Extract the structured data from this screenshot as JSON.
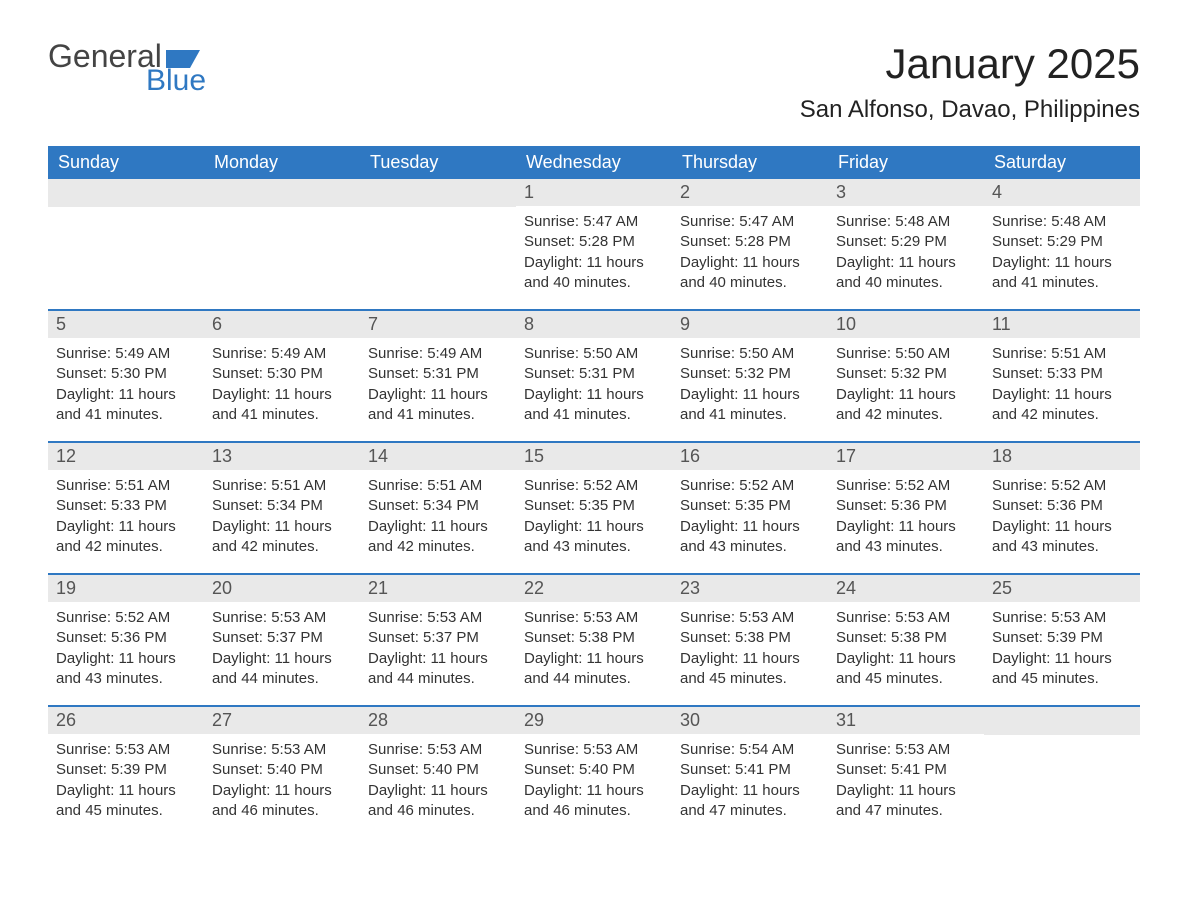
{
  "logo": {
    "general": "General",
    "blue": "Blue"
  },
  "header": {
    "month_title": "January 2025",
    "location": "San Alfonso, Davao, Philippines"
  },
  "colors": {
    "header_bg": "#2f78c2",
    "header_text": "#ffffff",
    "daynum_bg": "#e9e9e9",
    "week_divider": "#2f78c2",
    "body_text": "#333333"
  },
  "day_headers": [
    "Sunday",
    "Monday",
    "Tuesday",
    "Wednesday",
    "Thursday",
    "Friday",
    "Saturday"
  ],
  "weeks": [
    [
      {
        "day": "",
        "sunrise": "",
        "sunset": "",
        "daylight": ""
      },
      {
        "day": "",
        "sunrise": "",
        "sunset": "",
        "daylight": ""
      },
      {
        "day": "",
        "sunrise": "",
        "sunset": "",
        "daylight": ""
      },
      {
        "day": "1",
        "sunrise": "Sunrise: 5:47 AM",
        "sunset": "Sunset: 5:28 PM",
        "daylight": "Daylight: 11 hours and 40 minutes."
      },
      {
        "day": "2",
        "sunrise": "Sunrise: 5:47 AM",
        "sunset": "Sunset: 5:28 PM",
        "daylight": "Daylight: 11 hours and 40 minutes."
      },
      {
        "day": "3",
        "sunrise": "Sunrise: 5:48 AM",
        "sunset": "Sunset: 5:29 PM",
        "daylight": "Daylight: 11 hours and 40 minutes."
      },
      {
        "day": "4",
        "sunrise": "Sunrise: 5:48 AM",
        "sunset": "Sunset: 5:29 PM",
        "daylight": "Daylight: 11 hours and 41 minutes."
      }
    ],
    [
      {
        "day": "5",
        "sunrise": "Sunrise: 5:49 AM",
        "sunset": "Sunset: 5:30 PM",
        "daylight": "Daylight: 11 hours and 41 minutes."
      },
      {
        "day": "6",
        "sunrise": "Sunrise: 5:49 AM",
        "sunset": "Sunset: 5:30 PM",
        "daylight": "Daylight: 11 hours and 41 minutes."
      },
      {
        "day": "7",
        "sunrise": "Sunrise: 5:49 AM",
        "sunset": "Sunset: 5:31 PM",
        "daylight": "Daylight: 11 hours and 41 minutes."
      },
      {
        "day": "8",
        "sunrise": "Sunrise: 5:50 AM",
        "sunset": "Sunset: 5:31 PM",
        "daylight": "Daylight: 11 hours and 41 minutes."
      },
      {
        "day": "9",
        "sunrise": "Sunrise: 5:50 AM",
        "sunset": "Sunset: 5:32 PM",
        "daylight": "Daylight: 11 hours and 41 minutes."
      },
      {
        "day": "10",
        "sunrise": "Sunrise: 5:50 AM",
        "sunset": "Sunset: 5:32 PM",
        "daylight": "Daylight: 11 hours and 42 minutes."
      },
      {
        "day": "11",
        "sunrise": "Sunrise: 5:51 AM",
        "sunset": "Sunset: 5:33 PM",
        "daylight": "Daylight: 11 hours and 42 minutes."
      }
    ],
    [
      {
        "day": "12",
        "sunrise": "Sunrise: 5:51 AM",
        "sunset": "Sunset: 5:33 PM",
        "daylight": "Daylight: 11 hours and 42 minutes."
      },
      {
        "day": "13",
        "sunrise": "Sunrise: 5:51 AM",
        "sunset": "Sunset: 5:34 PM",
        "daylight": "Daylight: 11 hours and 42 minutes."
      },
      {
        "day": "14",
        "sunrise": "Sunrise: 5:51 AM",
        "sunset": "Sunset: 5:34 PM",
        "daylight": "Daylight: 11 hours and 42 minutes."
      },
      {
        "day": "15",
        "sunrise": "Sunrise: 5:52 AM",
        "sunset": "Sunset: 5:35 PM",
        "daylight": "Daylight: 11 hours and 43 minutes."
      },
      {
        "day": "16",
        "sunrise": "Sunrise: 5:52 AM",
        "sunset": "Sunset: 5:35 PM",
        "daylight": "Daylight: 11 hours and 43 minutes."
      },
      {
        "day": "17",
        "sunrise": "Sunrise: 5:52 AM",
        "sunset": "Sunset: 5:36 PM",
        "daylight": "Daylight: 11 hours and 43 minutes."
      },
      {
        "day": "18",
        "sunrise": "Sunrise: 5:52 AM",
        "sunset": "Sunset: 5:36 PM",
        "daylight": "Daylight: 11 hours and 43 minutes."
      }
    ],
    [
      {
        "day": "19",
        "sunrise": "Sunrise: 5:52 AM",
        "sunset": "Sunset: 5:36 PM",
        "daylight": "Daylight: 11 hours and 43 minutes."
      },
      {
        "day": "20",
        "sunrise": "Sunrise: 5:53 AM",
        "sunset": "Sunset: 5:37 PM",
        "daylight": "Daylight: 11 hours and 44 minutes."
      },
      {
        "day": "21",
        "sunrise": "Sunrise: 5:53 AM",
        "sunset": "Sunset: 5:37 PM",
        "daylight": "Daylight: 11 hours and 44 minutes."
      },
      {
        "day": "22",
        "sunrise": "Sunrise: 5:53 AM",
        "sunset": "Sunset: 5:38 PM",
        "daylight": "Daylight: 11 hours and 44 minutes."
      },
      {
        "day": "23",
        "sunrise": "Sunrise: 5:53 AM",
        "sunset": "Sunset: 5:38 PM",
        "daylight": "Daylight: 11 hours and 45 minutes."
      },
      {
        "day": "24",
        "sunrise": "Sunrise: 5:53 AM",
        "sunset": "Sunset: 5:38 PM",
        "daylight": "Daylight: 11 hours and 45 minutes."
      },
      {
        "day": "25",
        "sunrise": "Sunrise: 5:53 AM",
        "sunset": "Sunset: 5:39 PM",
        "daylight": "Daylight: 11 hours and 45 minutes."
      }
    ],
    [
      {
        "day": "26",
        "sunrise": "Sunrise: 5:53 AM",
        "sunset": "Sunset: 5:39 PM",
        "daylight": "Daylight: 11 hours and 45 minutes."
      },
      {
        "day": "27",
        "sunrise": "Sunrise: 5:53 AM",
        "sunset": "Sunset: 5:40 PM",
        "daylight": "Daylight: 11 hours and 46 minutes."
      },
      {
        "day": "28",
        "sunrise": "Sunrise: 5:53 AM",
        "sunset": "Sunset: 5:40 PM",
        "daylight": "Daylight: 11 hours and 46 minutes."
      },
      {
        "day": "29",
        "sunrise": "Sunrise: 5:53 AM",
        "sunset": "Sunset: 5:40 PM",
        "daylight": "Daylight: 11 hours and 46 minutes."
      },
      {
        "day": "30",
        "sunrise": "Sunrise: 5:54 AM",
        "sunset": "Sunset: 5:41 PM",
        "daylight": "Daylight: 11 hours and 47 minutes."
      },
      {
        "day": "31",
        "sunrise": "Sunrise: 5:53 AM",
        "sunset": "Sunset: 5:41 PM",
        "daylight": "Daylight: 11 hours and 47 minutes."
      },
      {
        "day": "",
        "sunrise": "",
        "sunset": "",
        "daylight": ""
      }
    ]
  ]
}
